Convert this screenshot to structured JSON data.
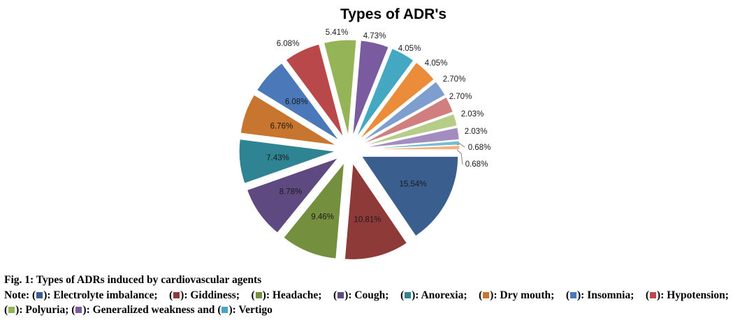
{
  "chart_data": {
    "type": "pie",
    "title": "Types of ADR's",
    "slices": [
      {
        "value": 15.54,
        "label": "15.54%",
        "color": "#3A5F8F"
      },
      {
        "value": 10.81,
        "label": "10.81%",
        "color": "#8E3A38"
      },
      {
        "value": 9.46,
        "label": "9.46%",
        "color": "#748F3E"
      },
      {
        "value": 8.78,
        "label": "8.78%",
        "color": "#5E4A80"
      },
      {
        "value": 7.43,
        "label": "7.43%",
        "color": "#2F8494"
      },
      {
        "value": 6.76,
        "label": "6.76%",
        "color": "#C8752F"
      },
      {
        "value": 6.08,
        "label": "6.08%",
        "color": "#4A78B8"
      },
      {
        "value": 6.08,
        "label": "6.08%",
        "color": "#B8484A"
      },
      {
        "value": 5.41,
        "label": "5.41%",
        "color": "#95B457"
      },
      {
        "value": 4.73,
        "label": "4.73%",
        "color": "#7A5BA0"
      },
      {
        "value": 4.05,
        "label": "4.05%",
        "color": "#45A8C2"
      },
      {
        "value": 4.05,
        "label": "4.05%",
        "color": "#EB8C3A"
      },
      {
        "value": 2.7,
        "label": "2.70%",
        "color": "#7E9ED0"
      },
      {
        "value": 2.7,
        "label": "2.70%",
        "color": "#D07E7E"
      },
      {
        "value": 2.03,
        "label": "2.03%",
        "color": "#B5CD86"
      },
      {
        "value": 2.03,
        "label": "2.03%",
        "color": "#A38DC0"
      },
      {
        "value": 0.68,
        "label": "0.68%",
        "color": "#72BCD4"
      },
      {
        "value": 0.68,
        "label": "0.68%",
        "color": "#F5B27F"
      }
    ]
  },
  "caption": {
    "figure_title": "Fig. 1: Types of ADRs induced by cardiovascular agents",
    "note_prefix": "Note:",
    "legend": [
      {
        "label": "Electrolyte imbalance;",
        "color": "#3A5F8F"
      },
      {
        "label": "Giddiness;",
        "color": "#8E3A38"
      },
      {
        "label": "Headache;",
        "color": "#748F3E"
      },
      {
        "label": "Cough;",
        "color": "#5E4A80"
      },
      {
        "label": "Anorexia;",
        "color": "#2F8494"
      },
      {
        "label": "Dry mouth;",
        "color": "#C8752F"
      },
      {
        "label": "Insomnia;",
        "color": "#4A78B8"
      },
      {
        "label": "Hypotension;",
        "color": "#B8484A"
      },
      {
        "label": "Polyuria;",
        "color": "#95B457"
      },
      {
        "label": "Generalized weakness and",
        "color": "#7A5BA0"
      },
      {
        "label": "Vertigo",
        "color": "#45A8C2"
      }
    ]
  }
}
